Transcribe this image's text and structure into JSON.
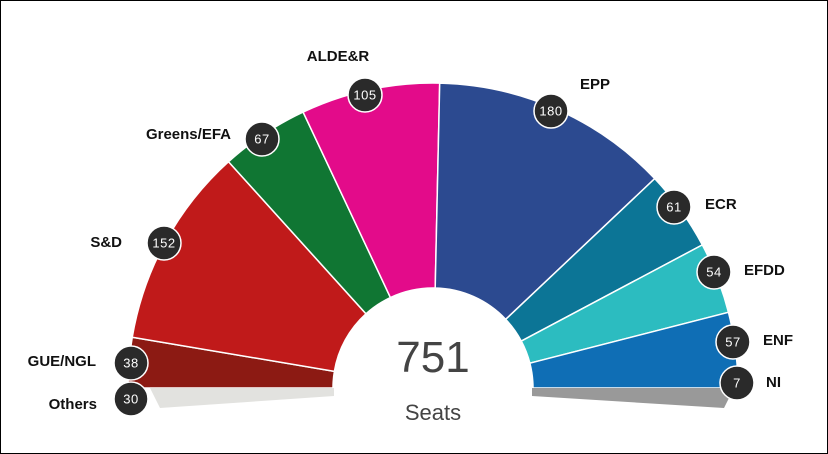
{
  "chart_data": {
    "type": "pie",
    "variant": "parliament-hemicycle",
    "total": "751",
    "total_label": "Seats",
    "order": "left-to-right",
    "parties": [
      {
        "name": "Others",
        "value": 30,
        "color": "#e2e2df"
      },
      {
        "name": "GUE/NGL",
        "value": 38,
        "color": "#8c1a13"
      },
      {
        "name": "S&D",
        "value": 152,
        "color": "#c01a1a"
      },
      {
        "name": "Greens/EFA",
        "value": 67,
        "color": "#107633"
      },
      {
        "name": "ALDE&R",
        "value": 105,
        "color": "#e30b8a"
      },
      {
        "name": "EPP",
        "value": 180,
        "color": "#2c4a90"
      },
      {
        "name": "ECR",
        "value": 61,
        "color": "#0c7596"
      },
      {
        "name": "EFDD",
        "value": 54,
        "color": "#2cbcc0"
      },
      {
        "name": "ENF",
        "value": 57,
        "color": "#0f6eb5"
      },
      {
        "name": "NI",
        "value": 7,
        "color": "#999999"
      }
    ]
  }
}
